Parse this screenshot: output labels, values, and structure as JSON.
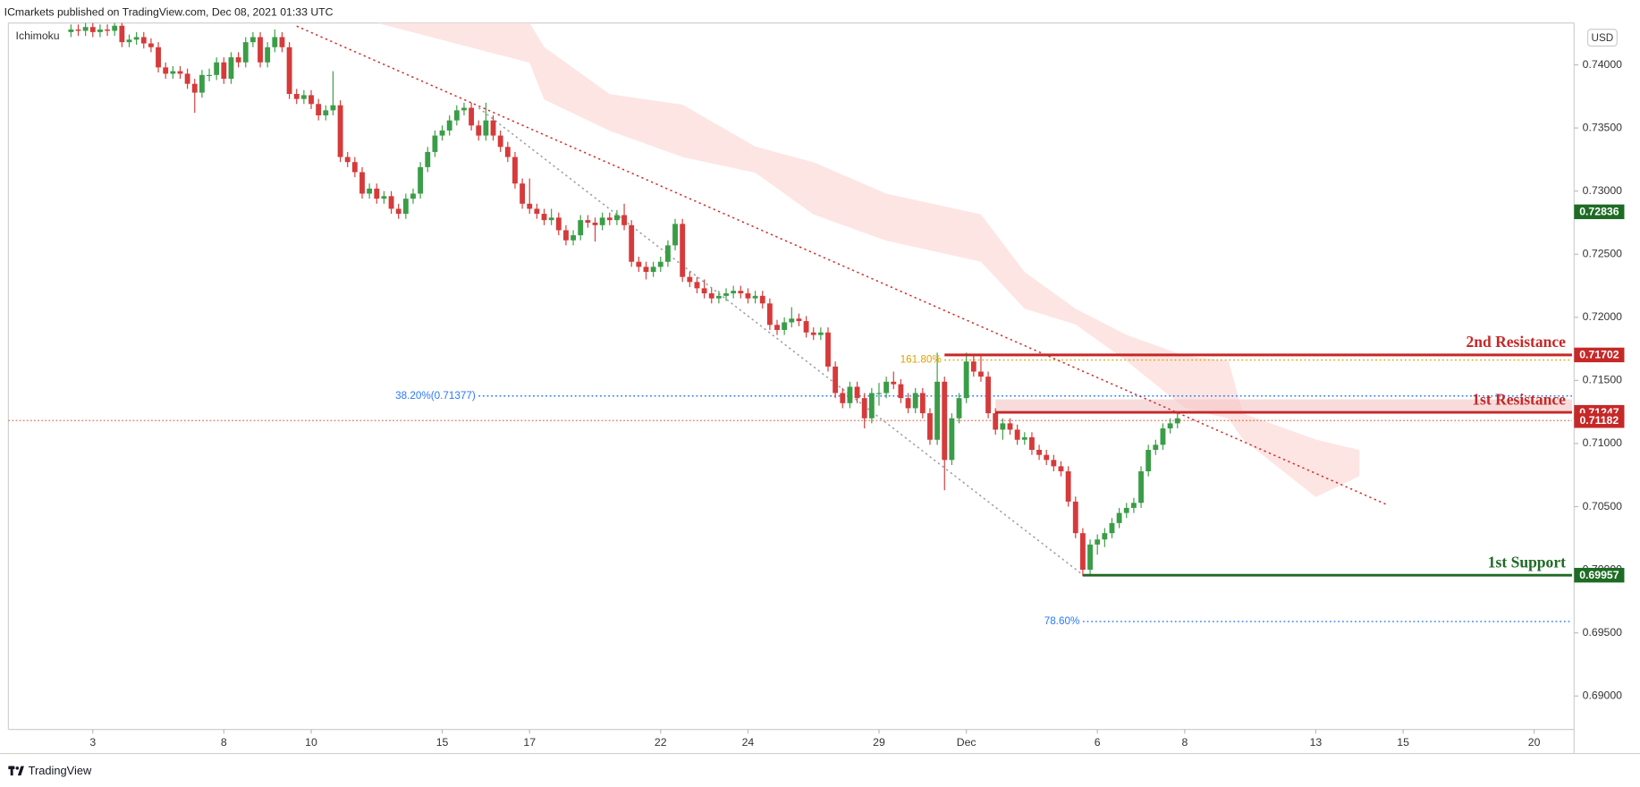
{
  "header": {
    "publisher": "ICmarkets published on TradingView.com, Dec 08, 2021 01:33 UTC",
    "indicator": "Ichimoku",
    "currency": "USD",
    "footer": "TradingView"
  },
  "chart_data": {
    "type": "candlestick",
    "up_color": "#3a9d47",
    "down_color": "#d63a3a",
    "xlim": [
      0.4,
      215.2
    ],
    "xticks": [
      {
        "value": 12,
        "label": "3"
      },
      {
        "value": 30,
        "label": "8"
      },
      {
        "value": 42,
        "label": "10"
      },
      {
        "value": 60,
        "label": "15"
      },
      {
        "value": 72,
        "label": "17"
      },
      {
        "value": 90,
        "label": "22"
      },
      {
        "value": 102,
        "label": "24"
      },
      {
        "value": 120,
        "label": "29"
      },
      {
        "value": 132,
        "label": "Dec"
      },
      {
        "value": 150,
        "label": "6"
      },
      {
        "value": 162,
        "label": "8"
      },
      {
        "value": 180,
        "label": "13"
      },
      {
        "value": 192,
        "label": "15"
      },
      {
        "value": 210,
        "label": "20"
      }
    ],
    "ylim": [
      0.68735,
      0.74315
    ],
    "yticks": [
      {
        "value": 0.69,
        "label": "0.69000"
      },
      {
        "value": 0.695,
        "label": "0.69500"
      },
      {
        "value": 0.7,
        "label": "0.70000"
      },
      {
        "value": 0.705,
        "label": "0.70500"
      },
      {
        "value": 0.71,
        "label": "0.71000"
      },
      {
        "value": 0.715,
        "label": "0.71500"
      },
      {
        "value": 0.72,
        "label": "0.72000"
      },
      {
        "value": 0.725,
        "label": "0.72500"
      },
      {
        "value": 0.73,
        "label": "0.73000"
      },
      {
        "value": 0.735,
        "label": "0.73500"
      },
      {
        "value": 0.74,
        "label": "0.74000"
      }
    ],
    "x": [
      9,
      10,
      11,
      12,
      13,
      14,
      15,
      16,
      17,
      18,
      19,
      20,
      21,
      22,
      23,
      24,
      25,
      26,
      27,
      28,
      29,
      30,
      31,
      32,
      33,
      34,
      35,
      36,
      37,
      38,
      39,
      40,
      41,
      42,
      43,
      44,
      45,
      46,
      47,
      48,
      49,
      50,
      51,
      52,
      53,
      54,
      55,
      56,
      57,
      58,
      59,
      60,
      61,
      62,
      63,
      64,
      65,
      66,
      67,
      68,
      69,
      70,
      71,
      72,
      73,
      74,
      75,
      76,
      77,
      78,
      79,
      80,
      81,
      82,
      83,
      84,
      85,
      86,
      87,
      88,
      89,
      90,
      91,
      92,
      93,
      94,
      95,
      96,
      97,
      98,
      99,
      100,
      101,
      102,
      103,
      104,
      105,
      106,
      107,
      108,
      109,
      110,
      111,
      112,
      113,
      114,
      115,
      116,
      117,
      118,
      119,
      120,
      121,
      122,
      123,
      124,
      125,
      126,
      127,
      128,
      129,
      130,
      131,
      132,
      133,
      134,
      135,
      136,
      137,
      138,
      139,
      140,
      141,
      142,
      143,
      144,
      145,
      146,
      147,
      148,
      149,
      150,
      151,
      152,
      153,
      154,
      155,
      156,
      157,
      158,
      159,
      160,
      161
    ],
    "ohlc": [
      [
        0.7426,
        0.7432,
        0.7422,
        0.7428
      ],
      [
        0.7428,
        0.7432,
        0.7423,
        0.7427
      ],
      [
        0.7427,
        0.7434,
        0.7423,
        0.743
      ],
      [
        0.743,
        0.7434,
        0.7422,
        0.7426
      ],
      [
        0.7426,
        0.7432,
        0.7422,
        0.7428
      ],
      [
        0.7428,
        0.7432,
        0.7423,
        0.7427
      ],
      [
        0.7427,
        0.7435,
        0.7423,
        0.7431
      ],
      [
        0.7431,
        0.7435,
        0.7414,
        0.7418
      ],
      [
        0.7418,
        0.7424,
        0.7414,
        0.742
      ],
      [
        0.742,
        0.7426,
        0.7416,
        0.7422
      ],
      [
        0.7422,
        0.7426,
        0.7413,
        0.7417
      ],
      [
        0.7417,
        0.7421,
        0.741,
        0.7414
      ],
      [
        0.7414,
        0.7418,
        0.7394,
        0.7398
      ],
      [
        0.7398,
        0.7402,
        0.7389,
        0.7393
      ],
      [
        0.7393,
        0.7399,
        0.7389,
        0.7395
      ],
      [
        0.7395,
        0.7399,
        0.7389,
        0.7393
      ],
      [
        0.7393,
        0.7397,
        0.7381,
        0.7385
      ],
      [
        0.7385,
        0.7389,
        0.7362,
        0.7378
      ],
      [
        0.7378,
        0.7396,
        0.7374,
        0.7392
      ],
      [
        0.7392,
        0.7397,
        0.7387,
        0.7392
      ],
      [
        0.7392,
        0.7406,
        0.7388,
        0.7402
      ],
      [
        0.7402,
        0.7406,
        0.7385,
        0.7389
      ],
      [
        0.7389,
        0.741,
        0.7385,
        0.7406
      ],
      [
        0.7406,
        0.741,
        0.7398,
        0.7402
      ],
      [
        0.7402,
        0.7422,
        0.7398,
        0.7418
      ],
      [
        0.7418,
        0.7426,
        0.7414,
        0.7422
      ],
      [
        0.7422,
        0.7426,
        0.7398,
        0.7402
      ],
      [
        0.7402,
        0.7418,
        0.7398,
        0.7414
      ],
      [
        0.7414,
        0.7428,
        0.741,
        0.7422
      ],
      [
        0.7422,
        0.7426,
        0.741,
        0.7414
      ],
      [
        0.7414,
        0.7418,
        0.7373,
        0.7377
      ],
      [
        0.7377,
        0.7381,
        0.7369,
        0.7373
      ],
      [
        0.7373,
        0.738,
        0.7369,
        0.7376
      ],
      [
        0.7376,
        0.738,
        0.7365,
        0.7369
      ],
      [
        0.7369,
        0.7373,
        0.7356,
        0.736
      ],
      [
        0.736,
        0.7368,
        0.7356,
        0.7364
      ],
      [
        0.7364,
        0.7395,
        0.736,
        0.7368
      ],
      [
        0.7368,
        0.7372,
        0.7323,
        0.7327
      ],
      [
        0.7327,
        0.7331,
        0.7319,
        0.7323
      ],
      [
        0.7323,
        0.7327,
        0.7311,
        0.7315
      ],
      [
        0.7315,
        0.7319,
        0.7294,
        0.7298
      ],
      [
        0.7298,
        0.7306,
        0.7294,
        0.7302
      ],
      [
        0.7302,
        0.7306,
        0.729,
        0.7294
      ],
      [
        0.7294,
        0.73,
        0.729,
        0.7296
      ],
      [
        0.7296,
        0.73,
        0.7282,
        0.7286
      ],
      [
        0.7286,
        0.729,
        0.7278,
        0.7282
      ],
      [
        0.7282,
        0.7298,
        0.7278,
        0.7294
      ],
      [
        0.7294,
        0.7302,
        0.729,
        0.7298
      ],
      [
        0.7298,
        0.7323,
        0.7294,
        0.7319
      ],
      [
        0.7319,
        0.7335,
        0.7315,
        0.7331
      ],
      [
        0.7331,
        0.7348,
        0.7327,
        0.7344
      ],
      [
        0.7344,
        0.7352,
        0.734,
        0.7348
      ],
      [
        0.7348,
        0.736,
        0.7344,
        0.7356
      ],
      [
        0.7356,
        0.7368,
        0.7352,
        0.7364
      ],
      [
        0.7364,
        0.737,
        0.736,
        0.7366
      ],
      [
        0.7366,
        0.737,
        0.7348,
        0.7352
      ],
      [
        0.7352,
        0.7356,
        0.734,
        0.7344
      ],
      [
        0.7344,
        0.737,
        0.734,
        0.7356
      ],
      [
        0.7356,
        0.736,
        0.734,
        0.7344
      ],
      [
        0.7344,
        0.7348,
        0.7331,
        0.7335
      ],
      [
        0.7335,
        0.7339,
        0.7323,
        0.7327
      ],
      [
        0.7327,
        0.7331,
        0.7302,
        0.7306
      ],
      [
        0.7306,
        0.731,
        0.7286,
        0.729
      ],
      [
        0.729,
        0.731,
        0.7282,
        0.7286
      ],
      [
        0.7286,
        0.729,
        0.7278,
        0.7282
      ],
      [
        0.7282,
        0.7286,
        0.7273,
        0.7277
      ],
      [
        0.7277,
        0.7286,
        0.7273,
        0.7279
      ],
      [
        0.7279,
        0.7283,
        0.7265,
        0.7269
      ],
      [
        0.7269,
        0.7273,
        0.7257,
        0.7261
      ],
      [
        0.7261,
        0.7269,
        0.7257,
        0.7265
      ],
      [
        0.7265,
        0.7281,
        0.7261,
        0.7277
      ],
      [
        0.7277,
        0.7281,
        0.7271,
        0.7275
      ],
      [
        0.7275,
        0.7279,
        0.726,
        0.7273
      ],
      [
        0.7273,
        0.7283,
        0.7269,
        0.7279
      ],
      [
        0.7279,
        0.7283,
        0.7273,
        0.7277
      ],
      [
        0.7277,
        0.7285,
        0.7273,
        0.7281
      ],
      [
        0.7281,
        0.729,
        0.7269,
        0.7273
      ],
      [
        0.7273,
        0.7277,
        0.724,
        0.7244
      ],
      [
        0.7244,
        0.7248,
        0.7236,
        0.724
      ],
      [
        0.724,
        0.7244,
        0.723,
        0.7236
      ],
      [
        0.7236,
        0.7244,
        0.7232,
        0.724
      ],
      [
        0.724,
        0.7248,
        0.7236,
        0.7244
      ],
      [
        0.7244,
        0.7261,
        0.724,
        0.7257
      ],
      [
        0.7257,
        0.7278,
        0.7253,
        0.7274
      ],
      [
        0.7274,
        0.7278,
        0.7228,
        0.7232
      ],
      [
        0.7232,
        0.7236,
        0.7224,
        0.7228
      ],
      [
        0.7228,
        0.7232,
        0.7219,
        0.7223
      ],
      [
        0.7223,
        0.723,
        0.7215,
        0.7219
      ],
      [
        0.7219,
        0.7223,
        0.7211,
        0.7215
      ],
      [
        0.7215,
        0.7221,
        0.7211,
        0.7217
      ],
      [
        0.7217,
        0.7223,
        0.7213,
        0.7219
      ],
      [
        0.7219,
        0.7225,
        0.7215,
        0.7221
      ],
      [
        0.7221,
        0.7225,
        0.7215,
        0.7219
      ],
      [
        0.7219,
        0.7223,
        0.7211,
        0.7215
      ],
      [
        0.7215,
        0.7221,
        0.7211,
        0.7217
      ],
      [
        0.7217,
        0.7221,
        0.7207,
        0.7211
      ],
      [
        0.7211,
        0.7215,
        0.719,
        0.7194
      ],
      [
        0.7194,
        0.7198,
        0.7186,
        0.719
      ],
      [
        0.719,
        0.72,
        0.7186,
        0.7196
      ],
      [
        0.7196,
        0.7208,
        0.7192,
        0.7199
      ],
      [
        0.7199,
        0.7203,
        0.7193,
        0.7197
      ],
      [
        0.7197,
        0.7201,
        0.7184,
        0.7188
      ],
      [
        0.7188,
        0.7192,
        0.7182,
        0.7186
      ],
      [
        0.7186,
        0.7192,
        0.7182,
        0.7188
      ],
      [
        0.7188,
        0.7192,
        0.7157,
        0.7161
      ],
      [
        0.7161,
        0.7165,
        0.7136,
        0.714
      ],
      [
        0.714,
        0.7144,
        0.7128,
        0.7132
      ],
      [
        0.7132,
        0.7149,
        0.7128,
        0.7145
      ],
      [
        0.7145,
        0.7149,
        0.7132,
        0.7136
      ],
      [
        0.7136,
        0.714,
        0.7112,
        0.712
      ],
      [
        0.712,
        0.7144,
        0.7116,
        0.714
      ],
      [
        0.714,
        0.7148,
        0.713,
        0.714
      ],
      [
        0.714,
        0.7153,
        0.7136,
        0.7149
      ],
      [
        0.7149,
        0.7157,
        0.7143,
        0.7147
      ],
      [
        0.7147,
        0.7151,
        0.7132,
        0.7136
      ],
      [
        0.7136,
        0.714,
        0.7124,
        0.7128
      ],
      [
        0.7128,
        0.7144,
        0.7124,
        0.714
      ],
      [
        0.714,
        0.7144,
        0.712,
        0.7124
      ],
      [
        0.7124,
        0.7128,
        0.7099,
        0.7103
      ],
      [
        0.7103,
        0.7172,
        0.7099,
        0.7149
      ],
      [
        0.7149,
        0.7153,
        0.7063,
        0.7087
      ],
      [
        0.7087,
        0.7124,
        0.7083,
        0.712
      ],
      [
        0.712,
        0.714,
        0.7116,
        0.7136
      ],
      [
        0.7136,
        0.7172,
        0.7132,
        0.7165
      ],
      [
        0.7165,
        0.717,
        0.7153,
        0.7157
      ],
      [
        0.7157,
        0.717,
        0.7149,
        0.7153
      ],
      [
        0.7153,
        0.7157,
        0.712,
        0.7124
      ],
      [
        0.7124,
        0.7128,
        0.7107,
        0.7111
      ],
      [
        0.7111,
        0.712,
        0.7103,
        0.7116
      ],
      [
        0.7116,
        0.712,
        0.7107,
        0.7111
      ],
      [
        0.7111,
        0.7115,
        0.7099,
        0.7103
      ],
      [
        0.7103,
        0.7109,
        0.7099,
        0.7105
      ],
      [
        0.7105,
        0.7109,
        0.7091,
        0.7095
      ],
      [
        0.7095,
        0.7099,
        0.7087,
        0.7091
      ],
      [
        0.7091,
        0.7095,
        0.7083,
        0.7087
      ],
      [
        0.7087,
        0.7091,
        0.7078,
        0.7082
      ],
      [
        0.7082,
        0.7086,
        0.7074,
        0.7078
      ],
      [
        0.7078,
        0.7082,
        0.705,
        0.7054
      ],
      [
        0.7054,
        0.7058,
        0.7025,
        0.7029
      ],
      [
        0.7029,
        0.7033,
        0.6995,
        0.7
      ],
      [
        0.7,
        0.7024,
        0.6996,
        0.702
      ],
      [
        0.702,
        0.7028,
        0.7012,
        0.7024
      ],
      [
        0.7024,
        0.7033,
        0.7018,
        0.7029
      ],
      [
        0.7029,
        0.7041,
        0.7025,
        0.7037
      ],
      [
        0.7037,
        0.7049,
        0.7033,
        0.7045
      ],
      [
        0.7045,
        0.7053,
        0.7041,
        0.7049
      ],
      [
        0.7049,
        0.7057,
        0.7045,
        0.7053
      ],
      [
        0.7053,
        0.7082,
        0.7049,
        0.7078
      ],
      [
        0.7078,
        0.7099,
        0.7074,
        0.7095
      ],
      [
        0.7095,
        0.7103,
        0.7091,
        0.7099
      ],
      [
        0.7099,
        0.7116,
        0.7095,
        0.7112
      ],
      [
        0.7112,
        0.712,
        0.7108,
        0.7116
      ],
      [
        0.7116,
        0.7124,
        0.7112,
        0.712
      ]
    ],
    "cloud": {
      "color": "#fde1de",
      "x": [
        51,
        72,
        74,
        83,
        93,
        103,
        111,
        121,
        134,
        140,
        147,
        154,
        162,
        168,
        170,
        180,
        186
      ],
      "upper": [
        0.74332,
        0.74332,
        0.74141,
        0.73768,
        0.73685,
        0.73353,
        0.73229,
        0.7298,
        0.72815,
        0.72359,
        0.72068,
        0.71861,
        0.71695,
        0.71654,
        0.71239,
        0.71032,
        0.70949
      ],
      "lower": [
        0.74332,
        0.74017,
        0.73726,
        0.73478,
        0.7327,
        0.73146,
        0.72815,
        0.72607,
        0.72441,
        0.72068,
        0.71944,
        0.71654,
        0.71281,
        0.71198,
        0.71032,
        0.70576,
        0.70742
      ]
    },
    "trendlines": [
      {
        "x": [
          40,
          190
        ],
        "y": [
          0.74307,
          0.7051
        ],
        "color": "#d32f2f"
      },
      {
        "x": [
          65,
          148
        ],
        "y": [
          0.7366,
          0.6996
        ],
        "color": "#9e9e9e"
      }
    ],
    "levels": [
      {
        "name": "2nd Resistance",
        "value": 0.71702,
        "from": 129,
        "color": "#c62828"
      },
      {
        "name": "1st Resistance",
        "value": 0.71247,
        "zone_top": 0.7135,
        "from": 136,
        "color": "#c62828"
      },
      {
        "name": "1st Support",
        "value": 0.69957,
        "from": 148,
        "color": "#1e6b24"
      }
    ],
    "fibs": [
      {
        "label": "38.20%(0.71377)",
        "value": 0.71377,
        "from": 65,
        "color": "#2979ff"
      },
      {
        "label": "161.80%",
        "value": 0.71662,
        "from": 129,
        "color": "#e0a000"
      },
      {
        "label": "78.60%",
        "value": 0.6959,
        "from": 148,
        "color": "#2979ff"
      }
    ],
    "last_price": 0.71182,
    "marker_price": 0.72836,
    "marker_color": "#1e6b24",
    "last_color": "#c62828"
  }
}
